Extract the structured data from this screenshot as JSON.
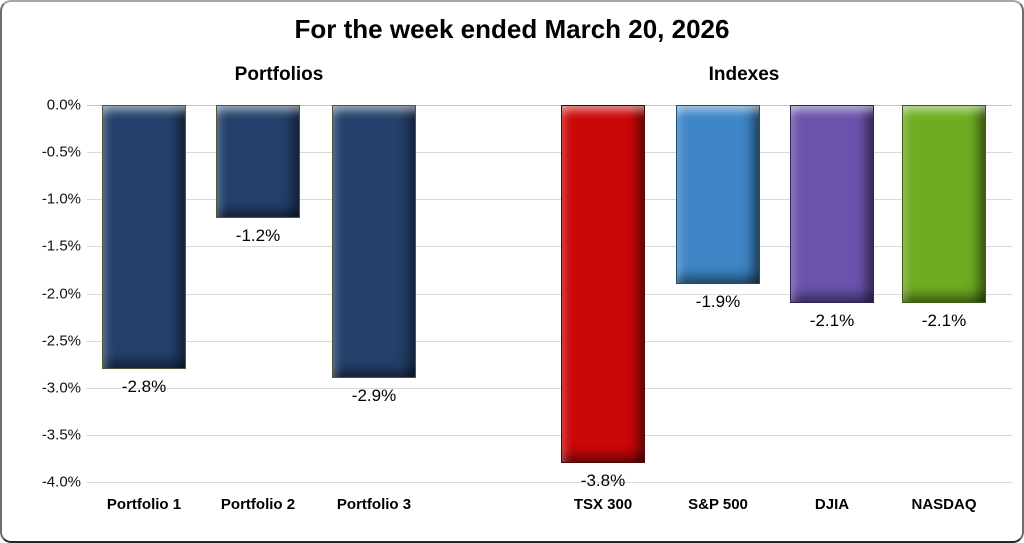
{
  "title": "For the week ended March 20, 2026",
  "chart_data": {
    "type": "bar",
    "title": "For the week ended March 20, 2026",
    "categories": [
      "Portfolio 1",
      "Portfolio 2",
      "Portfolio 3",
      "TSX 300",
      "S&P 500",
      "DJIA",
      "NASDAQ"
    ],
    "values": [
      -2.8,
      -1.2,
      -2.9,
      -3.8,
      -1.9,
      -2.1,
      -2.1
    ],
    "data_labels": [
      "-2.8%",
      "-1.2%",
      "-2.9%",
      "-3.8%",
      "-1.9%",
      "-2.1%",
      "-2.1%"
    ],
    "bar_colors": [
      "#24406b",
      "#24406b",
      "#24406b",
      "#cc0707",
      "#3e86c6",
      "#6a53ad",
      "#6ead21"
    ],
    "bar_border_colors": [
      "#4a5a38",
      "#4a5a38",
      "#4a5a38",
      "#4e0505",
      "#1d4f7c",
      "#2e2354",
      "#3b5c10"
    ],
    "groups": [
      {
        "label": "Portfolios",
        "members": [
          "Portfolio 1",
          "Portfolio 2",
          "Portfolio 3"
        ]
      },
      {
        "label": "Indexes",
        "members": [
          "TSX 300",
          "S&P 500",
          "DJIA",
          "NASDAQ"
        ]
      }
    ],
    "ylim": [
      -4.0,
      0.0
    ],
    "ytick_step": 0.5,
    "ytick_labels": [
      "0.0%",
      "-0.5%",
      "-1.0%",
      "-1.5%",
      "-2.0%",
      "-2.5%",
      "-3.0%",
      "-3.5%",
      "-4.0%"
    ],
    "grid": true,
    "legend": "none",
    "colors": {
      "grid": "#d9d9d9",
      "zero_line": "#c6c6c6",
      "text": "#000000",
      "background": "#ffffff"
    }
  }
}
